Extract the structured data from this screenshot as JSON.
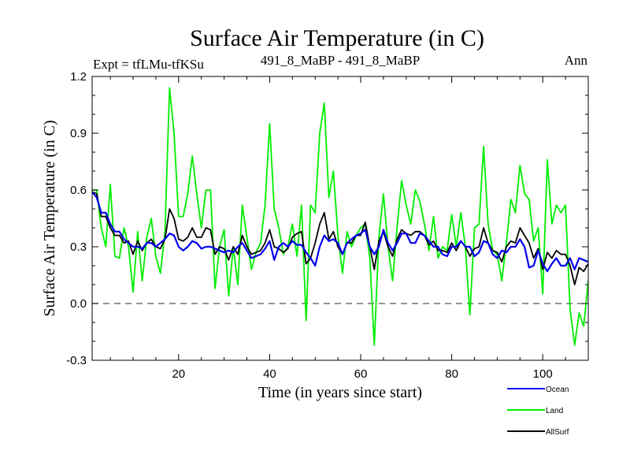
{
  "chart_data": {
    "type": "line",
    "title": "Surface Air Temperature (in C)",
    "subtitle_left": "Expt = tfLMu-tfKSu",
    "subtitle_center": "491_8_MaBP - 491_8_MaBP",
    "subtitle_right": "Ann",
    "xlabel": "Time (in years since start)",
    "ylabel": "Surface Air Temperature (in C)",
    "xlim": [
      1,
      110
    ],
    "ylim": [
      -0.3,
      1.2
    ],
    "xticks": [
      20,
      40,
      60,
      80,
      100
    ],
    "xtick_labels": [
      "20",
      "40",
      "60",
      "80",
      "100"
    ],
    "yticks": [
      -0.3,
      0.0,
      0.3,
      0.6,
      0.9,
      1.2
    ],
    "ytick_labels": [
      "-0.3",
      "0.0",
      "0.3",
      "0.6",
      "0.9",
      "1.2"
    ],
    "reference_line": 0.0,
    "legend_position": "bottom-right",
    "series": [
      {
        "name": "Land",
        "color": "#00ee00",
        "x": [
          1,
          2,
          3,
          4,
          5,
          6,
          7,
          8,
          9,
          10,
          11,
          12,
          13,
          14,
          15,
          16,
          17,
          18,
          19,
          20,
          21,
          22,
          23,
          24,
          25,
          26,
          27,
          28,
          29,
          30,
          31,
          32,
          33,
          34,
          35,
          36,
          37,
          38,
          39,
          40,
          41,
          42,
          43,
          44,
          45,
          46,
          47,
          48,
          49,
          50,
          51,
          52,
          53,
          54,
          55,
          56,
          57,
          58,
          59,
          60,
          61,
          62,
          63,
          64,
          65,
          66,
          67,
          68,
          69,
          70,
          71,
          72,
          73,
          74,
          75,
          76,
          77,
          78,
          79,
          80,
          81,
          82,
          83,
          84,
          85,
          86,
          87,
          88,
          89,
          90,
          91,
          92,
          93,
          94,
          95,
          96,
          97,
          98,
          99,
          100,
          101,
          102,
          103,
          104,
          105,
          106,
          107,
          108,
          109,
          110
        ],
        "values": [
          0.6,
          0.6,
          0.4,
          0.3,
          0.63,
          0.25,
          0.24,
          0.4,
          0.3,
          0.06,
          0.38,
          0.12,
          0.35,
          0.45,
          0.25,
          0.16,
          0.38,
          1.14,
          0.9,
          0.46,
          0.46,
          0.58,
          0.78,
          0.58,
          0.4,
          0.6,
          0.6,
          0.08,
          0.3,
          0.39,
          0.04,
          0.3,
          0.1,
          0.52,
          0.35,
          0.18,
          0.27,
          0.32,
          0.52,
          0.95,
          0.5,
          0.4,
          0.26,
          0.3,
          0.42,
          0.25,
          0.52,
          -0.09,
          0.52,
          0.48,
          0.9,
          1.06,
          0.56,
          0.7,
          0.36,
          0.16,
          0.38,
          0.3,
          0.36,
          0.4,
          0.42,
          0.24,
          -0.22,
          0.35,
          0.58,
          0.3,
          0.12,
          0.4,
          0.65,
          0.52,
          0.42,
          0.6,
          0.54,
          0.42,
          0.28,
          0.46,
          0.24,
          0.3,
          0.28,
          0.47,
          0.3,
          0.48,
          0.3,
          -0.06,
          0.4,
          0.42,
          0.83,
          0.42,
          0.28,
          0.26,
          0.12,
          0.32,
          0.55,
          0.48,
          0.73,
          0.58,
          0.55,
          0.33,
          0.4,
          0.05,
          0.76,
          0.42,
          0.52,
          0.48,
          0.52,
          -0.03,
          -0.22,
          -0.05,
          -0.12,
          0.12
        ]
      },
      {
        "name": "AllSurf",
        "color": "#000000",
        "x": [
          1,
          2,
          3,
          4,
          5,
          6,
          7,
          8,
          9,
          10,
          11,
          12,
          13,
          14,
          15,
          16,
          17,
          18,
          19,
          20,
          21,
          22,
          23,
          24,
          25,
          26,
          27,
          28,
          29,
          30,
          31,
          32,
          33,
          34,
          35,
          36,
          37,
          38,
          39,
          40,
          41,
          42,
          43,
          44,
          45,
          46,
          47,
          48,
          49,
          50,
          51,
          52,
          53,
          54,
          55,
          56,
          57,
          58,
          59,
          60,
          61,
          62,
          63,
          64,
          65,
          66,
          67,
          68,
          69,
          70,
          71,
          72,
          73,
          74,
          75,
          76,
          77,
          78,
          79,
          80,
          81,
          82,
          83,
          84,
          85,
          86,
          87,
          88,
          89,
          90,
          91,
          92,
          93,
          94,
          95,
          96,
          97,
          98,
          99,
          100,
          101,
          102,
          103,
          104,
          105,
          106,
          107,
          108,
          109,
          110
        ],
        "values": [
          0.59,
          0.58,
          0.46,
          0.46,
          0.4,
          0.36,
          0.36,
          0.32,
          0.33,
          0.26,
          0.33,
          0.28,
          0.32,
          0.34,
          0.3,
          0.29,
          0.34,
          0.5,
          0.45,
          0.34,
          0.33,
          0.35,
          0.4,
          0.35,
          0.35,
          0.4,
          0.39,
          0.26,
          0.3,
          0.29,
          0.23,
          0.3,
          0.26,
          0.36,
          0.3,
          0.26,
          0.27,
          0.28,
          0.32,
          0.39,
          0.3,
          0.29,
          0.27,
          0.29,
          0.35,
          0.37,
          0.38,
          0.21,
          0.24,
          0.32,
          0.42,
          0.48,
          0.34,
          0.38,
          0.3,
          0.26,
          0.32,
          0.32,
          0.36,
          0.36,
          0.43,
          0.3,
          0.18,
          0.33,
          0.38,
          0.3,
          0.25,
          0.34,
          0.39,
          0.37,
          0.36,
          0.38,
          0.38,
          0.36,
          0.31,
          0.33,
          0.28,
          0.28,
          0.27,
          0.32,
          0.28,
          0.33,
          0.3,
          0.25,
          0.29,
          0.3,
          0.4,
          0.32,
          0.28,
          0.27,
          0.22,
          0.3,
          0.33,
          0.32,
          0.4,
          0.36,
          0.32,
          0.24,
          0.29,
          0.18,
          0.27,
          0.24,
          0.28,
          0.26,
          0.26,
          0.2,
          0.1,
          0.19,
          0.17,
          0.21
        ]
      },
      {
        "name": "Ocean",
        "color": "#0000ee",
        "x": [
          1,
          2,
          3,
          4,
          5,
          6,
          7,
          8,
          9,
          10,
          11,
          12,
          13,
          14,
          15,
          16,
          17,
          18,
          19,
          20,
          21,
          22,
          23,
          24,
          25,
          26,
          27,
          28,
          29,
          30,
          31,
          32,
          33,
          34,
          35,
          36,
          37,
          38,
          39,
          40,
          41,
          42,
          43,
          44,
          45,
          46,
          47,
          48,
          49,
          50,
          51,
          52,
          53,
          54,
          55,
          56,
          57,
          58,
          59,
          60,
          61,
          62,
          63,
          64,
          65,
          66,
          67,
          68,
          69,
          70,
          71,
          72,
          73,
          74,
          75,
          76,
          77,
          78,
          79,
          80,
          81,
          82,
          83,
          84,
          85,
          86,
          87,
          88,
          89,
          90,
          91,
          92,
          93,
          94,
          95,
          96,
          97,
          98,
          99,
          100,
          101,
          102,
          103,
          104,
          105,
          106,
          107,
          108,
          109,
          110
        ],
        "values": [
          0.59,
          0.56,
          0.48,
          0.48,
          0.42,
          0.38,
          0.38,
          0.34,
          0.32,
          0.3,
          0.3,
          0.29,
          0.32,
          0.32,
          0.3,
          0.32,
          0.34,
          0.37,
          0.36,
          0.3,
          0.28,
          0.3,
          0.33,
          0.32,
          0.29,
          0.3,
          0.3,
          0.29,
          0.28,
          0.27,
          0.28,
          0.27,
          0.3,
          0.32,
          0.28,
          0.24,
          0.25,
          0.26,
          0.29,
          0.33,
          0.23,
          0.3,
          0.32,
          0.3,
          0.33,
          0.31,
          0.31,
          0.27,
          0.24,
          0.2,
          0.3,
          0.36,
          0.33,
          0.34,
          0.32,
          0.26,
          0.32,
          0.34,
          0.36,
          0.37,
          0.39,
          0.3,
          0.26,
          0.3,
          0.39,
          0.32,
          0.28,
          0.32,
          0.37,
          0.37,
          0.32,
          0.32,
          0.37,
          0.36,
          0.33,
          0.3,
          0.3,
          0.26,
          0.25,
          0.3,
          0.3,
          0.33,
          0.3,
          0.3,
          0.25,
          0.27,
          0.33,
          0.32,
          0.26,
          0.24,
          0.28,
          0.27,
          0.3,
          0.3,
          0.34,
          0.3,
          0.19,
          0.2,
          0.28,
          0.21,
          0.17,
          0.21,
          0.24,
          0.2,
          0.2,
          0.24,
          0.18,
          0.24,
          0.23,
          0.22
        ]
      }
    ],
    "legend": [
      {
        "name": "Ocean",
        "color": "#0000ee"
      },
      {
        "name": "Land",
        "color": "#00ee00"
      },
      {
        "name": "AllSurf",
        "color": "#000000"
      }
    ]
  }
}
